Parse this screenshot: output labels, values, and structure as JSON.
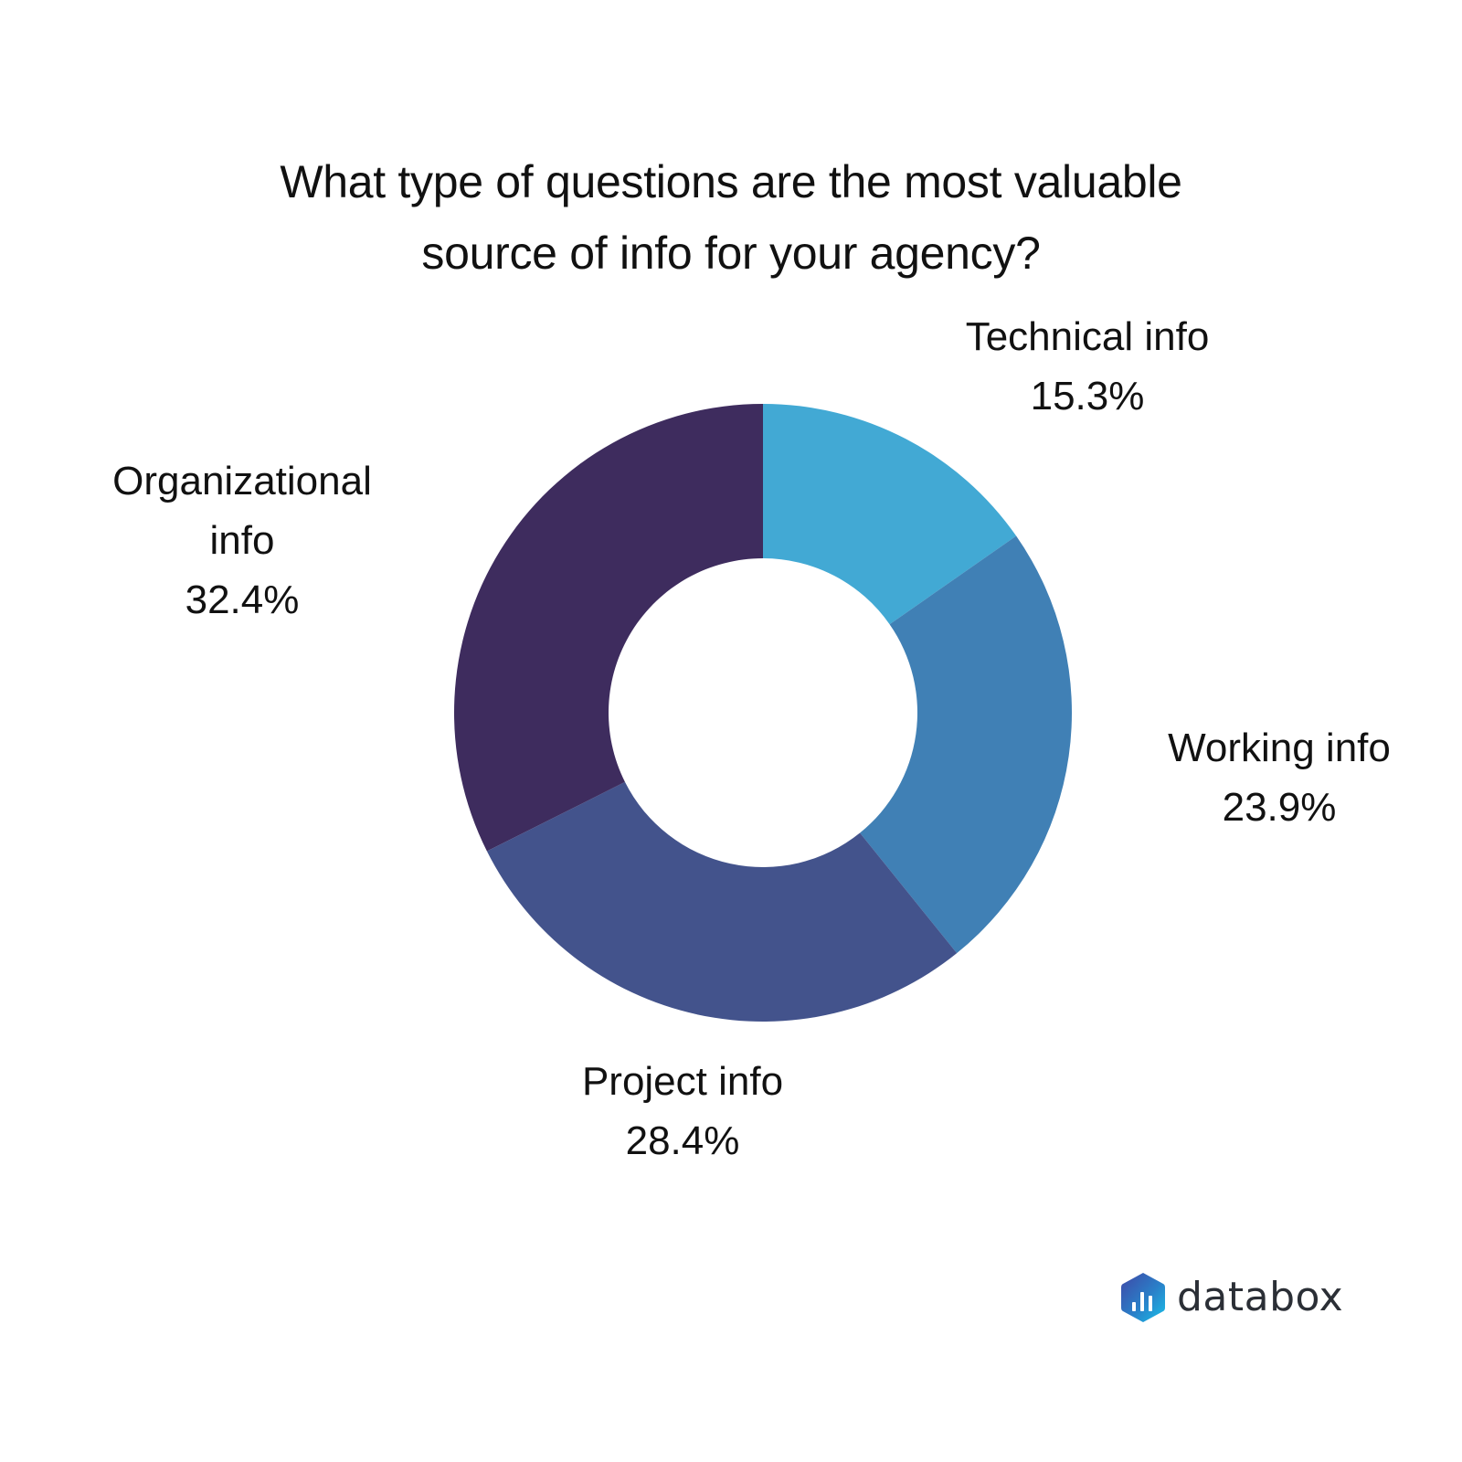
{
  "title": {
    "line1": "What type of questions are the most valuable",
    "line2": "source of info for your agency?"
  },
  "labels": {
    "technical": {
      "name": "Technical info",
      "value": "15.3%"
    },
    "working": {
      "name": "Working info",
      "value": "23.9%"
    },
    "project": {
      "name": "Project info",
      "value": "28.4%"
    },
    "organizational": {
      "name_line1": "Organizational",
      "name_line2": "info",
      "value": "32.4%"
    }
  },
  "colors": {
    "technical": "#42A9D4",
    "working": "#4080B5",
    "project": "#43538C",
    "organizational": "#3E2C5E",
    "background": "#FFFFFF",
    "text": "#111111"
  },
  "logo": {
    "text": "databox",
    "icon": "databox-hexagon-bar-chart-icon"
  },
  "chart_data": {
    "type": "pie",
    "variant": "donut",
    "title": "What type of questions are the most valuable source of info for your agency?",
    "categories": [
      "Technical info",
      "Working info",
      "Project info",
      "Organizational info"
    ],
    "values": [
      15.3,
      23.9,
      28.4,
      32.4
    ],
    "unit": "%",
    "colors": [
      "#42A9D4",
      "#4080B5",
      "#43538C",
      "#3E2C5E"
    ],
    "start_angle": "12 o'clock",
    "direction": "clockwise",
    "legend": "none (direct labels outside slices)",
    "source_brand": "databox"
  }
}
